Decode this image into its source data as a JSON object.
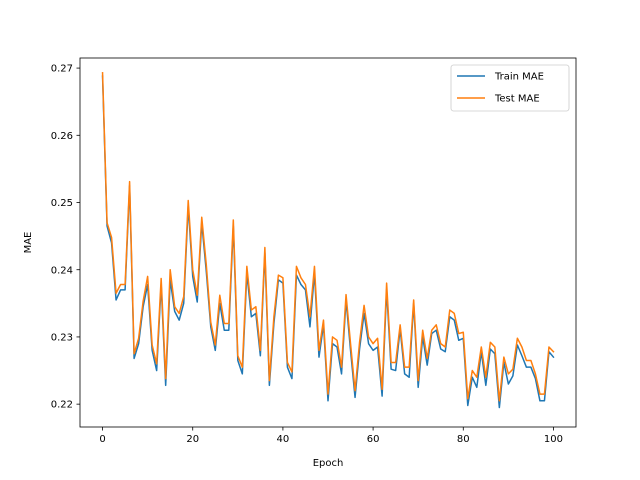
{
  "chart_data": {
    "type": "line",
    "title": "",
    "xlabel": "Epoch",
    "ylabel": "MAE",
    "xlim": [
      -5,
      105
    ],
    "ylim": [
      0.2166,
      0.2715
    ],
    "xticks": [
      0,
      20,
      40,
      60,
      80,
      100
    ],
    "yticks": [
      0.22,
      0.23,
      0.24,
      0.25,
      0.26,
      0.27
    ],
    "ytick_labels": [
      "0.22",
      "0.23",
      "0.24",
      "0.25",
      "0.26",
      "0.27"
    ],
    "grid": false,
    "legend_position": "top-right",
    "x": [
      0,
      1,
      2,
      3,
      4,
      5,
      6,
      7,
      8,
      9,
      10,
      11,
      12,
      13,
      14,
      15,
      16,
      17,
      18,
      19,
      20,
      21,
      22,
      23,
      24,
      25,
      26,
      27,
      28,
      29,
      30,
      31,
      32,
      33,
      34,
      35,
      36,
      37,
      38,
      39,
      40,
      41,
      42,
      43,
      44,
      45,
      46,
      47,
      48,
      49,
      50,
      51,
      52,
      53,
      54,
      55,
      56,
      57,
      58,
      59,
      60,
      61,
      62,
      63,
      64,
      65,
      66,
      67,
      68,
      69,
      70,
      71,
      72,
      73,
      74,
      75,
      76,
      77,
      78,
      79,
      80,
      81,
      82,
      83,
      84,
      85,
      86,
      87,
      88,
      89,
      90,
      91,
      92,
      93,
      94,
      95,
      96,
      97,
      98,
      99,
      100
    ],
    "series": [
      {
        "name": "Train MAE",
        "color": "#1f77b4",
        "values": [
          0.2688,
          0.2465,
          0.244,
          0.2355,
          0.237,
          0.237,
          0.2525,
          0.2268,
          0.229,
          0.2345,
          0.2378,
          0.228,
          0.225,
          0.2378,
          0.2228,
          0.2385,
          0.2338,
          0.2325,
          0.235,
          0.2495,
          0.239,
          0.2352,
          0.247,
          0.2398,
          0.2315,
          0.228,
          0.235,
          0.231,
          0.231,
          0.2465,
          0.2265,
          0.2245,
          0.2395,
          0.233,
          0.2335,
          0.2272,
          0.2425,
          0.2228,
          0.232,
          0.2385,
          0.238,
          0.2255,
          0.2238,
          0.2392,
          0.2378,
          0.237,
          0.2315,
          0.2395,
          0.227,
          0.2318,
          0.2205,
          0.229,
          0.2285,
          0.2245,
          0.2355,
          0.228,
          0.221,
          0.2282,
          0.2335,
          0.229,
          0.228,
          0.2285,
          0.2212,
          0.237,
          0.2252,
          0.225,
          0.2312,
          0.2245,
          0.224,
          0.235,
          0.2225,
          0.23,
          0.2258,
          0.2305,
          0.231,
          0.2282,
          0.2278,
          0.233,
          0.2325,
          0.2295,
          0.2298,
          0.2198,
          0.224,
          0.2225,
          0.2278,
          0.2228,
          0.2282,
          0.2275,
          0.2195,
          0.2262,
          0.223,
          0.2242,
          0.2288,
          0.2272,
          0.2255,
          0.2255,
          0.2238,
          0.2205,
          0.2205,
          0.2278,
          0.227
        ]
      },
      {
        "name": "Test MAE",
        "color": "#ff7f0e",
        "values": [
          0.2693,
          0.247,
          0.2448,
          0.2365,
          0.2378,
          0.2378,
          0.2531,
          0.2275,
          0.2298,
          0.2353,
          0.239,
          0.2288,
          0.226,
          0.2387,
          0.2238,
          0.24,
          0.2345,
          0.2335,
          0.236,
          0.2503,
          0.24,
          0.2362,
          0.2478,
          0.2408,
          0.2322,
          0.2288,
          0.2362,
          0.232,
          0.232,
          0.2474,
          0.2272,
          0.2255,
          0.2405,
          0.234,
          0.2345,
          0.228,
          0.2433,
          0.2235,
          0.233,
          0.2392,
          0.2388,
          0.2262,
          0.2248,
          0.2405,
          0.2388,
          0.2378,
          0.233,
          0.2405,
          0.228,
          0.2325,
          0.2215,
          0.23,
          0.2295,
          0.2255,
          0.2363,
          0.229,
          0.222,
          0.2292,
          0.2347,
          0.23,
          0.229,
          0.2298,
          0.2222,
          0.238,
          0.2262,
          0.2262,
          0.2318,
          0.2255,
          0.2255,
          0.2355,
          0.2235,
          0.231,
          0.2268,
          0.231,
          0.2318,
          0.229,
          0.2285,
          0.234,
          0.2335,
          0.2305,
          0.2307,
          0.2208,
          0.225,
          0.224,
          0.2285,
          0.224,
          0.2292,
          0.2285,
          0.2205,
          0.227,
          0.2245,
          0.2252,
          0.2298,
          0.2285,
          0.2265,
          0.2265,
          0.2245,
          0.2215,
          0.2215,
          0.2285,
          0.2278
        ]
      }
    ]
  }
}
